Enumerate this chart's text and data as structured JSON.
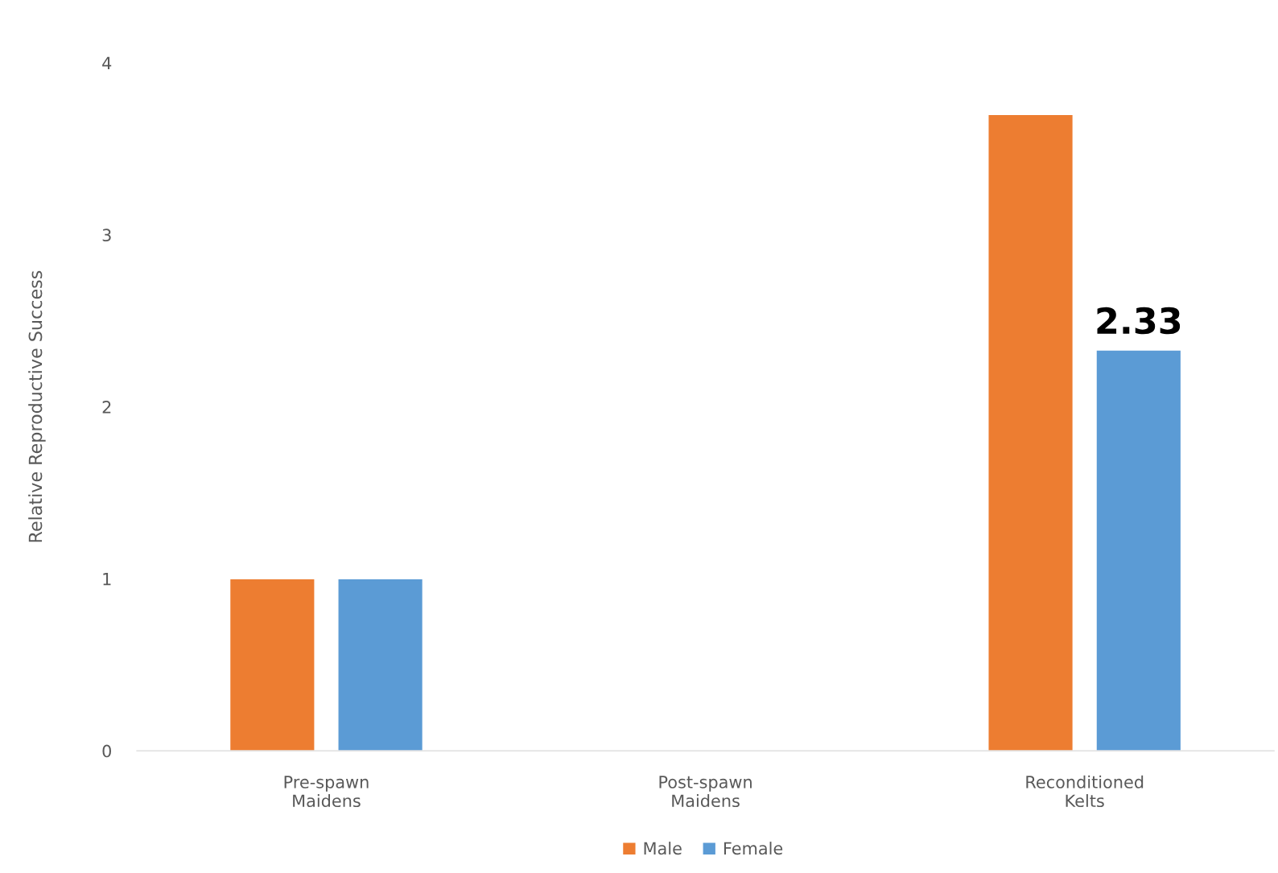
{
  "chart_data": {
    "type": "bar",
    "ylabel": "Relative Reproductive Success",
    "categories": [
      "Pre-spawn\nMaidens",
      "Post-spawn\nMaidens",
      "Reconditioned\nKelts"
    ],
    "series": [
      {
        "name": "Male",
        "color": "#ed7d31",
        "values": [
          1,
          null,
          3.7
        ]
      },
      {
        "name": "Female",
        "color": "#5b9bd5",
        "values": [
          1,
          null,
          2.33
        ],
        "value_labels": [
          null,
          null,
          "2.33"
        ]
      }
    ],
    "ylim": [
      0,
      4
    ],
    "yticks": [
      0,
      1,
      2,
      3,
      4
    ],
    "grid": false,
    "legend": "bottom"
  }
}
